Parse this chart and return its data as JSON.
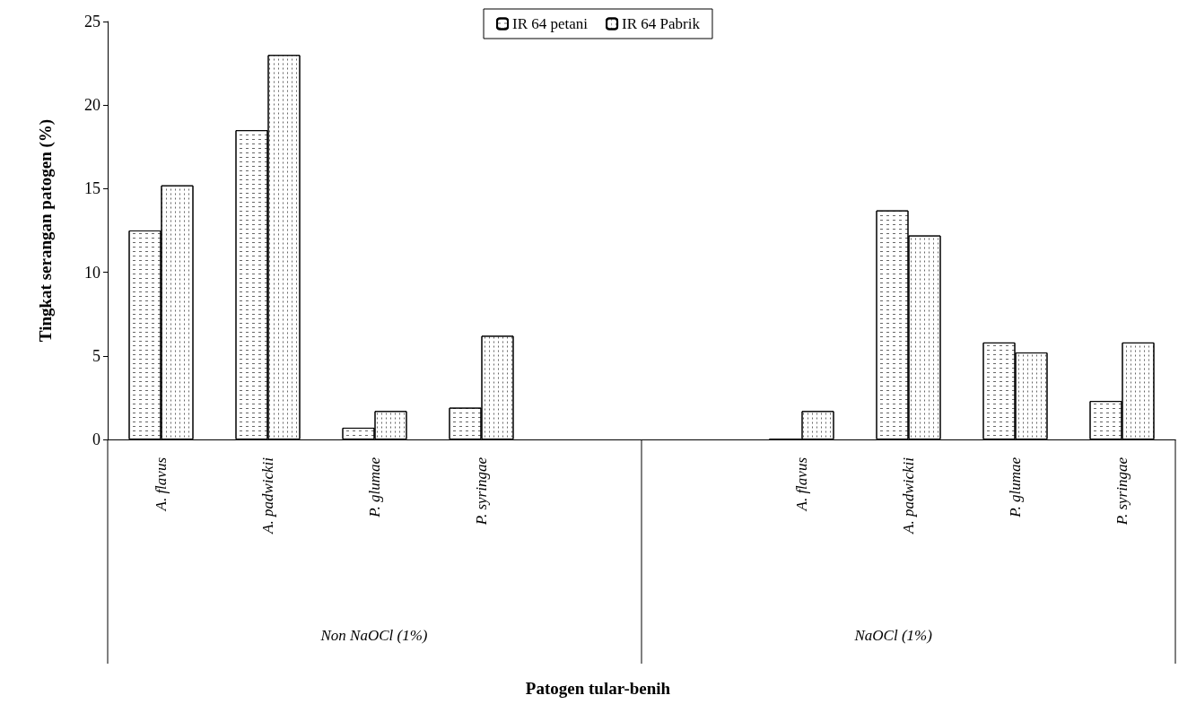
{
  "chart_data": {
    "type": "bar",
    "ylabel": "Tingkat serangan patogen (%)",
    "categories": [
      "A. flavus",
      "A. padwickii",
      "P. glumae",
      "P. syringae",
      null,
      null,
      "A. flavus",
      "A. padwickii",
      "P. glumae",
      "P. syringae"
    ],
    "series": [
      {
        "name": "IR 64 petani",
        "color": "#ffffff",
        "values": [
          12.5,
          18.5,
          0.7,
          1.9,
          null,
          null,
          0,
          13.7,
          5.8,
          2.3
        ]
      },
      {
        "name": "IR 64 Pabrik",
        "color": "#ffffff",
        "values": [
          15.2,
          23,
          1.7,
          6.2,
          null,
          null,
          1.7,
          12.2,
          5.2,
          5.8
        ]
      }
    ],
    "annotations": [
      "Non NaOCl (1%)",
      "NaOCl (1%)",
      "Patogen tular-benih"
    ],
    "ylim": [
      0,
      25
    ],
    "yticks": [
      0,
      5,
      10,
      15,
      20,
      25
    ],
    "grid": false,
    "legend": "top"
  }
}
